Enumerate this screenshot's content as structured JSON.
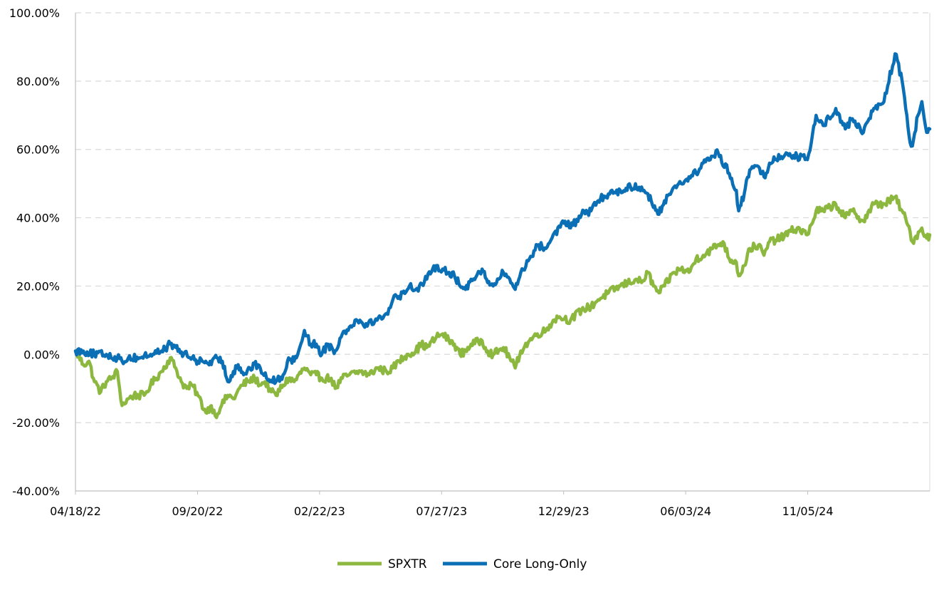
{
  "chart_data": {
    "type": "line",
    "title": "",
    "xlabel": "",
    "ylabel": "",
    "x_ticks": [
      "04/18/22",
      "09/20/22",
      "02/22/23",
      "07/27/23",
      "12/29/23",
      "06/03/24",
      "11/05/24"
    ],
    "x_range": [
      "2022-04-18",
      "2025-04-04"
    ],
    "ylim": [
      -40,
      100
    ],
    "y_ticks": [
      "-40.00%",
      "-20.00%",
      "0.00%",
      "20.00%",
      "40.00%",
      "60.00%",
      "80.00%",
      "100.00%"
    ],
    "y_tick_values": [
      -40,
      -20,
      0,
      20,
      40,
      60,
      80,
      100
    ],
    "y_unit": "%",
    "grid": "horizontal dashed",
    "legend_position": "bottom-center",
    "series": [
      {
        "name": "SPXTR",
        "color": "#8cb83f",
        "points": [
          [
            "2022-04-18",
            1
          ],
          [
            "2022-04-28",
            -3
          ],
          [
            "2022-05-05",
            -2
          ],
          [
            "2022-05-12",
            -8
          ],
          [
            "2022-05-20",
            -11
          ],
          [
            "2022-05-27",
            -8
          ],
          [
            "2022-06-03",
            -7
          ],
          [
            "2022-06-10",
            -5
          ],
          [
            "2022-06-16",
            -15
          ],
          [
            "2022-06-24",
            -13
          ],
          [
            "2022-07-01",
            -12
          ],
          [
            "2022-07-14",
            -12
          ],
          [
            "2022-07-22",
            -9
          ],
          [
            "2022-07-29",
            -7
          ],
          [
            "2022-08-05",
            -5
          ],
          [
            "2022-08-16",
            -1
          ],
          [
            "2022-08-23",
            -4
          ],
          [
            "2022-08-30",
            -8
          ],
          [
            "2022-09-06",
            -10
          ],
          [
            "2022-09-13",
            -9
          ],
          [
            "2022-09-20",
            -12
          ],
          [
            "2022-09-30",
            -17
          ],
          [
            "2022-10-07",
            -15
          ],
          [
            "2022-10-12",
            -18
          ],
          [
            "2022-10-20",
            -15
          ],
          [
            "2022-10-28",
            -12
          ],
          [
            "2022-11-04",
            -13
          ],
          [
            "2022-11-15",
            -9
          ],
          [
            "2022-11-22",
            -8
          ],
          [
            "2022-12-01",
            -7
          ],
          [
            "2022-12-09",
            -9
          ],
          [
            "2022-12-14",
            -8
          ],
          [
            "2022-12-22",
            -11
          ],
          [
            "2022-12-28",
            -12
          ],
          [
            "2023-01-06",
            -9
          ],
          [
            "2023-01-13",
            -7
          ],
          [
            "2023-01-20",
            -8
          ],
          [
            "2023-02-02",
            -4
          ],
          [
            "2023-02-10",
            -6
          ],
          [
            "2023-02-17",
            -6
          ],
          [
            "2023-02-24",
            -7
          ],
          [
            "2023-03-08",
            -7
          ],
          [
            "2023-03-13",
            -10
          ],
          [
            "2023-03-22",
            -7
          ],
          [
            "2023-03-31",
            -6
          ],
          [
            "2023-04-14",
            -5
          ],
          [
            "2023-04-25",
            -6
          ],
          [
            "2023-05-05",
            -4
          ],
          [
            "2023-05-17",
            -5
          ],
          [
            "2023-05-25",
            -4
          ],
          [
            "2023-06-02",
            -2
          ],
          [
            "2023-06-12",
            0
          ],
          [
            "2023-06-23",
            1
          ],
          [
            "2023-06-30",
            3
          ],
          [
            "2023-07-07",
            2
          ],
          [
            "2023-07-19",
            5
          ],
          [
            "2023-07-27",
            6
          ],
          [
            "2023-08-04",
            4
          ],
          [
            "2023-08-11",
            3
          ],
          [
            "2023-08-18",
            0
          ],
          [
            "2023-08-25",
            1
          ],
          [
            "2023-09-01",
            3
          ],
          [
            "2023-09-15",
            4
          ],
          [
            "2023-09-22",
            1
          ],
          [
            "2023-09-29",
            0
          ],
          [
            "2023-10-06",
            1
          ],
          [
            "2023-10-12",
            2
          ],
          [
            "2023-10-20",
            -1
          ],
          [
            "2023-10-27",
            -4
          ],
          [
            "2023-11-03",
            1
          ],
          [
            "2023-11-14",
            4
          ],
          [
            "2023-11-24",
            6
          ],
          [
            "2023-12-05",
            7
          ],
          [
            "2023-12-14",
            10
          ],
          [
            "2023-12-22",
            11
          ],
          [
            "2024-01-05",
            10
          ],
          [
            "2024-01-19",
            13
          ],
          [
            "2024-01-31",
            14
          ],
          [
            "2024-02-09",
            16
          ],
          [
            "2024-02-22",
            18
          ],
          [
            "2024-03-08",
            20
          ],
          [
            "2024-03-28",
            22
          ],
          [
            "2024-04-04",
            21
          ],
          [
            "2024-04-12",
            24
          ],
          [
            "2024-04-19",
            20
          ],
          [
            "2024-04-26",
            18
          ],
          [
            "2024-05-03",
            20
          ],
          [
            "2024-05-15",
            24
          ],
          [
            "2024-05-24",
            25
          ],
          [
            "2024-06-03",
            24
          ],
          [
            "2024-06-12",
            28
          ],
          [
            "2024-06-21",
            29
          ],
          [
            "2024-07-03",
            31
          ],
          [
            "2024-07-16",
            33
          ],
          [
            "2024-07-24",
            28
          ],
          [
            "2024-08-02",
            27
          ],
          [
            "2024-08-05",
            23
          ],
          [
            "2024-08-12",
            26
          ],
          [
            "2024-08-19",
            31
          ],
          [
            "2024-08-30",
            32
          ],
          [
            "2024-09-06",
            29
          ],
          [
            "2024-09-13",
            33
          ],
          [
            "2024-09-27",
            34
          ],
          [
            "2024-10-10",
            36
          ],
          [
            "2024-10-18",
            37
          ],
          [
            "2024-10-31",
            35
          ],
          [
            "2024-11-05",
            38
          ],
          [
            "2024-11-11",
            42
          ],
          [
            "2024-11-20",
            42
          ],
          [
            "2024-12-06",
            44
          ],
          [
            "2024-12-18",
            40
          ],
          [
            "2024-12-27",
            42
          ],
          [
            "2025-01-10",
            39
          ],
          [
            "2025-01-23",
            44
          ],
          [
            "2025-02-05",
            44
          ],
          [
            "2025-02-19",
            46
          ],
          [
            "2025-02-28",
            42
          ],
          [
            "2025-03-10",
            36
          ],
          [
            "2025-03-13",
            33
          ],
          [
            "2025-03-25",
            37
          ],
          [
            "2025-03-31",
            34
          ],
          [
            "2025-04-04",
            35
          ]
        ]
      },
      {
        "name": "Core Long-Only",
        "color": "#0a6fb5",
        "points": [
          [
            "2022-04-18",
            1
          ],
          [
            "2022-04-28",
            1
          ],
          [
            "2022-05-12",
            0
          ],
          [
            "2022-05-27",
            0
          ],
          [
            "2022-06-10",
            -1
          ],
          [
            "2022-06-16",
            -2
          ],
          [
            "2022-06-24",
            -1
          ],
          [
            "2022-07-08",
            -1
          ],
          [
            "2022-07-22",
            0
          ],
          [
            "2022-08-05",
            1
          ],
          [
            "2022-08-16",
            3
          ],
          [
            "2022-08-23",
            2
          ],
          [
            "2022-09-02",
            0
          ],
          [
            "2022-09-13",
            -1
          ],
          [
            "2022-09-20",
            -2
          ],
          [
            "2022-09-30",
            -2
          ],
          [
            "2022-10-07",
            -3
          ],
          [
            "2022-10-14",
            -1
          ],
          [
            "2022-10-21",
            -2
          ],
          [
            "2022-10-28",
            -8
          ],
          [
            "2022-11-04",
            -5
          ],
          [
            "2022-11-10",
            -3
          ],
          [
            "2022-11-17",
            -6
          ],
          [
            "2022-11-25",
            -4
          ],
          [
            "2022-12-05",
            -3
          ],
          [
            "2022-12-16",
            -7
          ],
          [
            "2022-12-28",
            -8
          ],
          [
            "2023-01-06",
            -6
          ],
          [
            "2023-01-13",
            -1
          ],
          [
            "2023-01-20",
            -2
          ],
          [
            "2023-01-27",
            2
          ],
          [
            "2023-02-02",
            7
          ],
          [
            "2023-02-10",
            3
          ],
          [
            "2023-02-17",
            3
          ],
          [
            "2023-02-24",
            0
          ],
          [
            "2023-03-03",
            3
          ],
          [
            "2023-03-13",
            1
          ],
          [
            "2023-03-22",
            6
          ],
          [
            "2023-03-31",
            8
          ],
          [
            "2023-04-07",
            10
          ],
          [
            "2023-04-21",
            9
          ],
          [
            "2023-05-05",
            10
          ],
          [
            "2023-05-17",
            12
          ],
          [
            "2023-05-25",
            16
          ],
          [
            "2023-06-02",
            17
          ],
          [
            "2023-06-15",
            20
          ],
          [
            "2023-06-23",
            19
          ],
          [
            "2023-07-07",
            22
          ],
          [
            "2023-07-19",
            26
          ],
          [
            "2023-07-27",
            25
          ],
          [
            "2023-08-04",
            24
          ],
          [
            "2023-08-11",
            23
          ],
          [
            "2023-08-18",
            20
          ],
          [
            "2023-08-25",
            19
          ],
          [
            "2023-09-01",
            22
          ],
          [
            "2023-09-15",
            25
          ],
          [
            "2023-09-22",
            21
          ],
          [
            "2023-09-29",
            20
          ],
          [
            "2023-10-06",
            22
          ],
          [
            "2023-10-12",
            24
          ],
          [
            "2023-10-20",
            22
          ],
          [
            "2023-10-27",
            19
          ],
          [
            "2023-11-03",
            24
          ],
          [
            "2023-11-14",
            28
          ],
          [
            "2023-11-24",
            32
          ],
          [
            "2023-12-05",
            31
          ],
          [
            "2023-12-14",
            35
          ],
          [
            "2023-12-29",
            39
          ],
          [
            "2024-01-05",
            37
          ],
          [
            "2024-01-19",
            41
          ],
          [
            "2024-01-31",
            42
          ],
          [
            "2024-02-09",
            45
          ],
          [
            "2024-02-22",
            47
          ],
          [
            "2024-03-08",
            48
          ],
          [
            "2024-03-21",
            49
          ],
          [
            "2024-04-04",
            49
          ],
          [
            "2024-04-12",
            47
          ],
          [
            "2024-04-19",
            43
          ],
          [
            "2024-04-26",
            41
          ],
          [
            "2024-05-03",
            45
          ],
          [
            "2024-05-15",
            49
          ],
          [
            "2024-05-24",
            50
          ],
          [
            "2024-06-03",
            52
          ],
          [
            "2024-06-12",
            53
          ],
          [
            "2024-06-21",
            56
          ],
          [
            "2024-07-03",
            58
          ],
          [
            "2024-07-10",
            59
          ],
          [
            "2024-07-24",
            53
          ],
          [
            "2024-08-02",
            48
          ],
          [
            "2024-08-05",
            42
          ],
          [
            "2024-08-12",
            47
          ],
          [
            "2024-08-19",
            54
          ],
          [
            "2024-08-30",
            55
          ],
          [
            "2024-09-06",
            52
          ],
          [
            "2024-09-13",
            56
          ],
          [
            "2024-09-20",
            57
          ],
          [
            "2024-10-04",
            59
          ],
          [
            "2024-10-18",
            58
          ],
          [
            "2024-10-31",
            57
          ],
          [
            "2024-11-05",
            62
          ],
          [
            "2024-11-11",
            70
          ],
          [
            "2024-11-20",
            67
          ],
          [
            "2024-12-06",
            72
          ],
          [
            "2024-12-18",
            66
          ],
          [
            "2024-12-27",
            69
          ],
          [
            "2025-01-10",
            65
          ],
          [
            "2025-01-23",
            72
          ],
          [
            "2025-02-05",
            74
          ],
          [
            "2025-02-19",
            88
          ],
          [
            "2025-02-28",
            80
          ],
          [
            "2025-03-06",
            70
          ],
          [
            "2025-03-10",
            62
          ],
          [
            "2025-03-13",
            61
          ],
          [
            "2025-03-20",
            70
          ],
          [
            "2025-03-25",
            74
          ],
          [
            "2025-03-31",
            65
          ],
          [
            "2025-04-04",
            66
          ]
        ]
      }
    ]
  }
}
